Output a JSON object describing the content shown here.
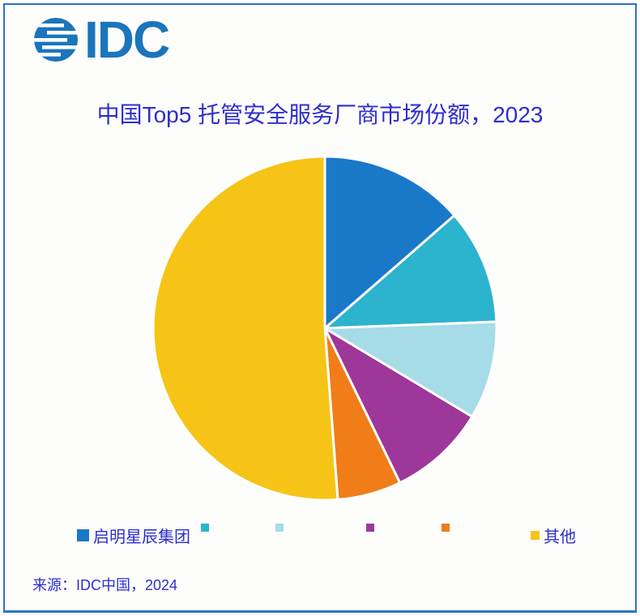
{
  "logo": {
    "text": "IDC",
    "brand_color": "#1b75bc"
  },
  "chart": {
    "title": "中国Top5 托管安全服务厂商市场份额，2023"
  },
  "chart_data": {
    "type": "pie",
    "title": "中国Top5 托管安全服务厂商市场份额，2023",
    "unit": "%",
    "direction": "clockwise",
    "start_angle_deg": 0,
    "legend_position": "bottom",
    "series": [
      {
        "name": "启明星辰集团",
        "value": 13.6,
        "color": "#1a78c8"
      },
      {
        "name": "",
        "value": 10.8,
        "color": "#2cb3ce"
      },
      {
        "name": "",
        "value": 9.2,
        "color": "#a6dbe8"
      },
      {
        "name": "",
        "value": 9.2,
        "color": "#9d3799"
      },
      {
        "name": "",
        "value": 6.0,
        "color": "#f07d18"
      },
      {
        "name": "其他",
        "value": 51.2,
        "color": "#f5c416"
      }
    ]
  },
  "footer": {
    "source": "来源：IDC中国，2024"
  },
  "colors": {
    "title_text": "#2e2ecd",
    "legend_text": "#2e2ecd",
    "source_text": "#2e2ecd",
    "frame_border": "#2c74c4",
    "background": "#fdfdfb",
    "slice_separator": "#ffffff"
  }
}
